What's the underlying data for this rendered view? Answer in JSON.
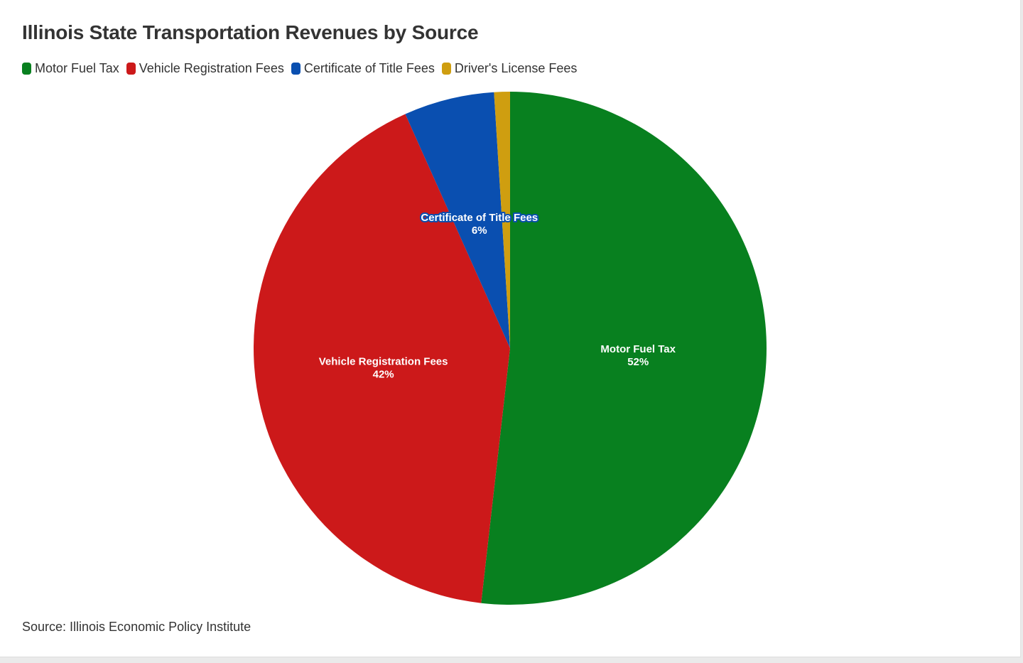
{
  "chart_data": {
    "type": "pie",
    "title": "Illinois State Transportation Revenues by Source",
    "source": "Source: Illinois Economic Policy Institute",
    "slices": [
      {
        "name": "Motor Fuel Tax",
        "value": 51.8,
        "label": "52%",
        "color": "#08801f"
      },
      {
        "name": "Vehicle Registration Fees",
        "value": 41.5,
        "label": "42%",
        "color": "#cc191a"
      },
      {
        "name": "Certificate of Title Fees",
        "value": 5.7,
        "label": "6%",
        "color": "#0a4fb0"
      },
      {
        "name": "Driver's License Fees",
        "value": 1.0,
        "label": "",
        "color": "#cf9e10"
      }
    ],
    "legend_position": "top-left",
    "start_angle": "12 o'clock, clockwise"
  }
}
